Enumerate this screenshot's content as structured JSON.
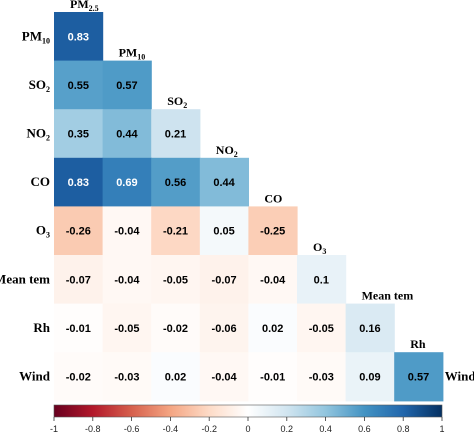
{
  "chart_data": {
    "type": "heatmap",
    "subtype": "lower-triangle correlation matrix",
    "variables": [
      {
        "main": "PM",
        "sub": "2.5"
      },
      {
        "main": "PM",
        "sub": "10"
      },
      {
        "main": "SO",
        "sub": "2"
      },
      {
        "main": "NO",
        "sub": "2"
      },
      {
        "main": "CO",
        "sub": ""
      },
      {
        "main": "O",
        "sub": "3"
      },
      {
        "main": "Mean tem",
        "sub": ""
      },
      {
        "main": "Rh",
        "sub": ""
      },
      {
        "main": "Wind",
        "sub": ""
      }
    ],
    "values": [
      [
        0.83
      ],
      [
        0.55,
        0.57
      ],
      [
        0.35,
        0.44,
        0.21
      ],
      [
        0.83,
        0.69,
        0.56,
        0.44
      ],
      [
        -0.26,
        -0.04,
        -0.21,
        0.05,
        -0.25
      ],
      [
        -0.07,
        -0.04,
        -0.05,
        -0.07,
        -0.04,
        0.1
      ],
      [
        -0.01,
        -0.05,
        -0.02,
        -0.06,
        0.02,
        -0.05,
        0.16
      ],
      [
        -0.02,
        -0.03,
        0.02,
        -0.04,
        -0.01,
        -0.03,
        0.09,
        0.57
      ]
    ],
    "value_labels": [
      [
        "0.83"
      ],
      [
        "0.55",
        "0.57"
      ],
      [
        "0.35",
        "0.44",
        "0.21"
      ],
      [
        "0.83",
        "0.69",
        "0.56",
        "0.44"
      ],
      [
        "-0.26",
        "-0.04",
        "-0.21",
        "0.05",
        "-0.25"
      ],
      [
        "-0.07",
        "-0.04",
        "-0.05",
        "-0.07",
        "-0.04",
        "0.1"
      ],
      [
        "-0.01",
        "-0.05",
        "-0.02",
        "-0.06",
        "0.02",
        "-0.05",
        "0.16"
      ],
      [
        "-0.02",
        "-0.03",
        "0.02",
        "-0.04",
        "-0.01",
        "-0.03",
        "0.09",
        "0.57"
      ]
    ],
    "colorbar": {
      "range": [
        -1,
        1
      ],
      "ticks": [
        "-1",
        "-0.8",
        "-0.6",
        "-0.4",
        "-0.2",
        "0",
        "0.2",
        "0.4",
        "0.6",
        "0.8",
        "1"
      ],
      "colors": [
        "#67001f",
        "#b2182b",
        "#d6604d",
        "#f4a582",
        "#fddbc7",
        "#ffffff",
        "#d1e5f0",
        "#92c5de",
        "#4393c3",
        "#2166ac",
        "#053061"
      ]
    }
  }
}
